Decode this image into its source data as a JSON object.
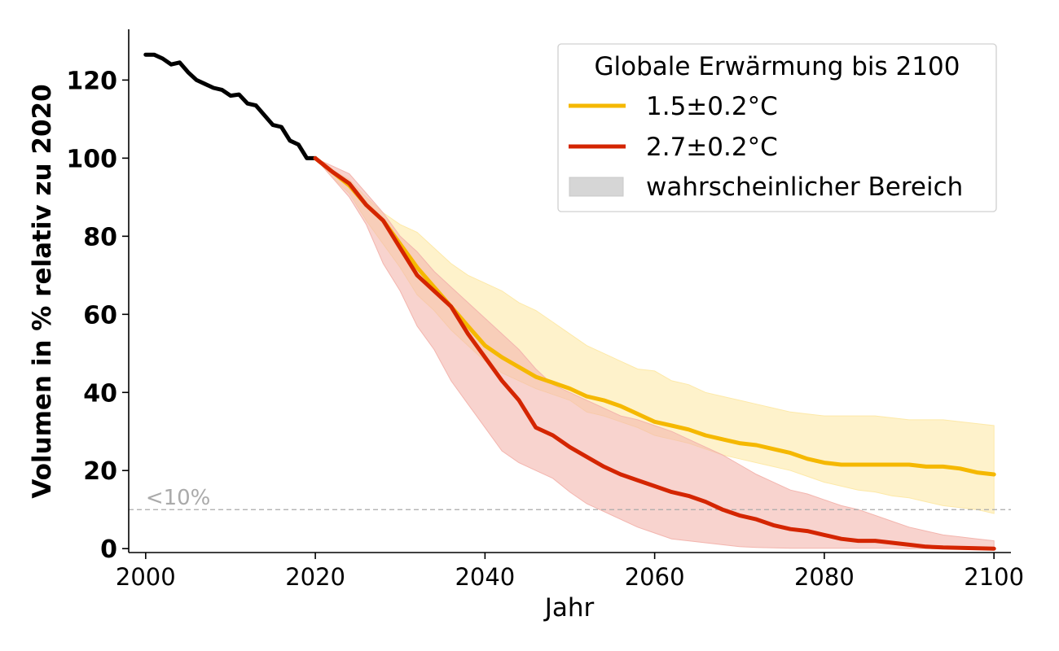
{
  "chart_data": {
    "type": "line",
    "xlabel": "Jahr",
    "ylabel": "Volumen in % relativ zu 2020",
    "xlim": [
      1998,
      2102
    ],
    "ylim": [
      -1,
      133
    ],
    "x_ticks": [
      "2000",
      "2020",
      "2040",
      "2060",
      "2080",
      "2100"
    ],
    "y_ticks": [
      "0",
      "20",
      "40",
      "60",
      "80",
      "100",
      "120"
    ],
    "grid": false,
    "legend": {
      "title": "Globale Erwärmung bis 2100",
      "placement": "top-right",
      "range_label": "wahrscheinlicher Bereich",
      "range_color": "#d6d6d6"
    },
    "threshold": {
      "y": 10,
      "label": "<10%",
      "color": "#aaaaaa"
    },
    "historical": {
      "color": "#000000",
      "x": [
        2000,
        2001,
        2002,
        2003,
        2004,
        2005,
        2006,
        2007,
        2008,
        2009,
        2010,
        2011,
        2012,
        2013,
        2014,
        2015,
        2016,
        2017,
        2018,
        2019,
        2020
      ],
      "y": [
        126.5,
        126.5,
        125.5,
        124,
        124.5,
        122,
        120,
        119,
        118,
        117.5,
        116,
        116.3,
        114,
        113.5,
        111,
        108.5,
        108,
        104.5,
        103.5,
        100,
        100
      ]
    },
    "series": [
      {
        "name": "1.5±0.2°C",
        "color": "#f5b800",
        "band_color": "#fde9a8",
        "x": [
          2020,
          2022,
          2024,
          2026,
          2028,
          2030,
          2032,
          2034,
          2036,
          2038,
          2040,
          2042,
          2044,
          2046,
          2048,
          2050,
          2052,
          2054,
          2056,
          2058,
          2060,
          2062,
          2064,
          2066,
          2068,
          2070,
          2072,
          2074,
          2076,
          2078,
          2080,
          2082,
          2084,
          2086,
          2088,
          2090,
          2092,
          2094,
          2096,
          2098,
          2100
        ],
        "y": [
          100,
          96.5,
          93,
          88,
          84,
          78,
          72,
          67,
          62,
          57,
          52,
          49,
          46.5,
          44,
          42.5,
          41,
          39,
          38,
          36.5,
          34.5,
          32.5,
          31.5,
          30.5,
          29,
          28,
          27,
          26.5,
          25.5,
          24.5,
          23,
          22,
          21.5,
          21.5,
          21.5,
          21.5,
          21.5,
          21,
          21,
          20.5,
          19.5,
          19
        ],
        "low": [
          100,
          95,
          91,
          84,
          78,
          72,
          65,
          61,
          56,
          52,
          48,
          45,
          43,
          41,
          39.5,
          38,
          35,
          34,
          32.5,
          31,
          29,
          28,
          27,
          25.5,
          24,
          23,
          22,
          21,
          20,
          18.5,
          17,
          16,
          15,
          14.5,
          13.5,
          13,
          12,
          11,
          10.5,
          10,
          9
        ],
        "high": [
          100,
          97,
          94.5,
          90,
          86,
          83,
          81,
          77,
          73,
          70,
          68,
          66,
          63,
          61,
          58,
          55,
          52,
          50,
          48,
          46,
          45.5,
          43,
          42,
          40,
          39,
          38,
          37,
          36,
          35,
          34.5,
          34,
          34,
          34,
          34,
          33.5,
          33,
          33,
          33,
          32.5,
          32,
          31.5
        ]
      },
      {
        "name": "2.7±0.2°C",
        "color": "#d42500",
        "band_color": "#f3b5ae",
        "x": [
          2020,
          2022,
          2024,
          2026,
          2028,
          2030,
          2032,
          2034,
          2036,
          2038,
          2040,
          2042,
          2044,
          2046,
          2048,
          2050,
          2052,
          2054,
          2056,
          2058,
          2060,
          2062,
          2064,
          2066,
          2068,
          2070,
          2072,
          2074,
          2076,
          2078,
          2080,
          2082,
          2084,
          2086,
          2088,
          2090,
          2092,
          2094,
          2096,
          2098,
          2100
        ],
        "y": [
          100,
          96.5,
          93.5,
          88,
          84,
          77,
          70,
          66,
          62,
          55,
          49,
          43,
          38,
          31,
          29,
          26,
          23.5,
          21,
          19,
          17.5,
          16,
          14.5,
          13.5,
          12,
          10,
          8.5,
          7.5,
          6,
          5,
          4.5,
          3.5,
          2.5,
          2,
          2,
          1.5,
          1,
          0.5,
          0.3,
          0.2,
          0.1,
          0
        ],
        "low": [
          100,
          95,
          90,
          83,
          73,
          66,
          57,
          51,
          43,
          37,
          31,
          25,
          22,
          20,
          18,
          14.5,
          11.5,
          9.5,
          7.5,
          5.5,
          4,
          2.5,
          2,
          1.5,
          1,
          0.5,
          0.3,
          0.2,
          0.1,
          0.1,
          0.1,
          0.1,
          0.1,
          0.1,
          0.1,
          0,
          0,
          0,
          0,
          0,
          0
        ],
        "high": [
          100,
          98,
          96,
          91,
          86,
          80,
          76,
          71,
          67,
          63,
          59,
          55,
          51,
          46,
          42,
          40,
          38,
          36,
          34,
          33,
          31.5,
          30,
          28,
          26,
          24,
          21.5,
          19,
          17,
          15,
          14,
          12.5,
          11,
          10,
          8.5,
          7,
          5.5,
          4.5,
          3.5,
          3,
          2.5,
          2
        ]
      }
    ]
  }
}
